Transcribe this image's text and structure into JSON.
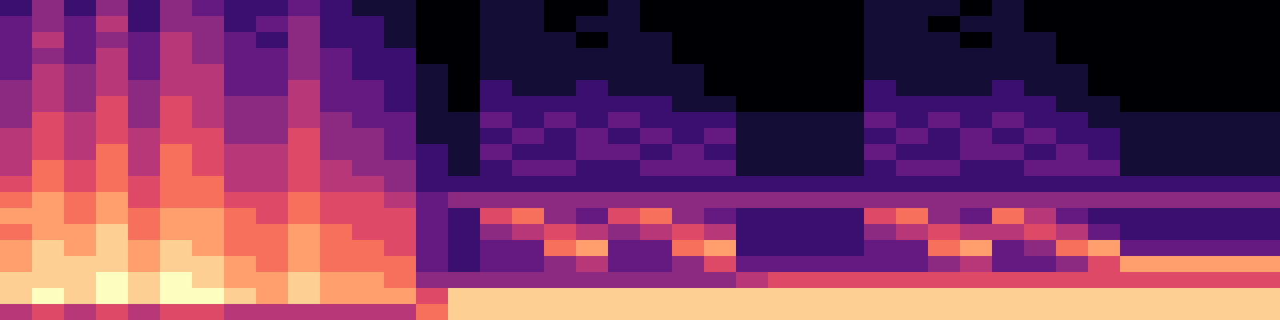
{
  "chart_data": {
    "type": "heatmap",
    "tick_labels": false,
    "color": "magma",
    "zlim": [
      0,
      10
    ],
    "cells": [
      [
        2,
        4,
        2,
        4,
        2,
        4,
        3,
        2,
        2,
        3,
        2,
        1,
        1,
        0,
        0,
        1,
        1,
        0,
        0,
        1,
        0,
        0,
        0,
        0,
        0,
        0,
        0,
        1,
        1,
        1,
        0,
        1,
        0,
        0,
        0,
        0,
        0,
        0,
        0,
        0
      ],
      [
        3,
        4,
        3,
        5,
        2,
        4,
        4,
        2,
        3,
        4,
        2,
        2,
        1,
        0,
        0,
        1,
        1,
        0,
        1,
        1,
        0,
        0,
        0,
        0,
        0,
        0,
        0,
        1,
        1,
        0,
        1,
        1,
        0,
        0,
        0,
        0,
        0,
        0,
        0,
        0
      ],
      [
        3,
        5,
        3,
        4,
        3,
        5,
        4,
        3,
        2,
        4,
        2,
        2,
        1,
        0,
        0,
        1,
        1,
        1,
        0,
        1,
        1,
        0,
        0,
        0,
        0,
        0,
        0,
        1,
        1,
        1,
        0,
        1,
        1,
        0,
        0,
        0,
        0,
        0,
        0,
        0
      ],
      [
        3,
        4,
        3,
        5,
        3,
        5,
        4,
        3,
        3,
        4,
        3,
        2,
        2,
        0,
        0,
        1,
        1,
        1,
        1,
        1,
        1,
        0,
        0,
        0,
        0,
        0,
        0,
        1,
        1,
        1,
        1,
        1,
        1,
        0,
        0,
        0,
        0,
        0,
        0,
        0
      ],
      [
        3,
        5,
        4,
        5,
        3,
        5,
        5,
        3,
        3,
        4,
        3,
        2,
        2,
        1,
        0,
        1,
        1,
        1,
        1,
        1,
        1,
        1,
        0,
        0,
        0,
        0,
        0,
        1,
        1,
        1,
        1,
        1,
        1,
        1,
        0,
        0,
        0,
        0,
        0,
        0
      ],
      [
        4,
        5,
        4,
        5,
        4,
        5,
        5,
        3,
        3,
        5,
        3,
        3,
        2,
        1,
        0,
        2,
        1,
        1,
        2,
        1,
        1,
        1,
        0,
        0,
        0,
        0,
        0,
        2,
        1,
        1,
        1,
        2,
        1,
        1,
        0,
        0,
        0,
        0,
        0,
        0
      ],
      [
        4,
        5,
        4,
        6,
        4,
        6,
        5,
        4,
        4,
        5,
        3,
        3,
        2,
        1,
        0,
        2,
        2,
        2,
        2,
        2,
        2,
        1,
        1,
        0,
        0,
        0,
        0,
        2,
        2,
        2,
        2,
        2,
        2,
        1,
        1,
        0,
        0,
        0,
        0,
        0
      ],
      [
        4,
        6,
        5,
        6,
        4,
        6,
        5,
        4,
        4,
        5,
        4,
        3,
        3,
        1,
        1,
        3,
        2,
        3,
        2,
        3,
        2,
        2,
        2,
        1,
        1,
        1,
        1,
        3,
        2,
        3,
        2,
        3,
        2,
        2,
        1,
        1,
        1,
        1,
        1,
        1
      ],
      [
        5,
        6,
        5,
        6,
        5,
        6,
        6,
        4,
        4,
        6,
        4,
        4,
        3,
        1,
        1,
        2,
        3,
        2,
        3,
        2,
        3,
        2,
        3,
        1,
        1,
        1,
        1,
        2,
        3,
        2,
        3,
        2,
        3,
        2,
        2,
        1,
        1,
        1,
        1,
        1
      ],
      [
        5,
        6,
        5,
        7,
        5,
        7,
        6,
        5,
        5,
        6,
        4,
        4,
        3,
        2,
        1,
        3,
        2,
        2,
        3,
        3,
        2,
        3,
        2,
        1,
        1,
        1,
        1,
        3,
        2,
        2,
        3,
        3,
        2,
        3,
        2,
        1,
        1,
        1,
        1,
        1
      ],
      [
        5,
        7,
        6,
        7,
        5,
        7,
        6,
        5,
        5,
        6,
        5,
        4,
        4,
        2,
        1,
        2,
        3,
        3,
        2,
        2,
        3,
        3,
        3,
        1,
        1,
        1,
        1,
        2,
        3,
        3,
        2,
        2,
        3,
        3,
        3,
        1,
        1,
        1,
        1,
        1
      ],
      [
        6,
        7,
        6,
        7,
        6,
        7,
        7,
        5,
        5,
        6,
        5,
        5,
        4,
        2,
        2,
        2,
        2,
        2,
        2,
        2,
        2,
        2,
        2,
        2,
        2,
        2,
        2,
        2,
        2,
        2,
        2,
        2,
        2,
        2,
        2,
        2,
        2,
        2,
        2,
        2
      ],
      [
        7,
        8,
        7,
        8,
        6,
        7,
        7,
        6,
        6,
        7,
        6,
        6,
        5,
        3,
        4,
        4,
        4,
        4,
        4,
        4,
        4,
        4,
        4,
        4,
        4,
        4,
        4,
        4,
        4,
        4,
        4,
        4,
        4,
        4,
        4,
        4,
        4,
        4,
        4,
        4
      ],
      [
        8,
        8,
        7,
        8,
        7,
        8,
        8,
        7,
        6,
        7,
        6,
        6,
        6,
        3,
        2,
        6,
        7,
        4,
        3,
        6,
        7,
        4,
        3,
        2,
        2,
        2,
        2,
        6,
        7,
        4,
        3,
        7,
        5,
        3,
        2,
        2,
        2,
        2,
        2,
        2
      ],
      [
        7,
        8,
        8,
        9,
        7,
        8,
        8,
        7,
        7,
        8,
        7,
        6,
        6,
        3,
        2,
        4,
        5,
        6,
        5,
        4,
        5,
        6,
        5,
        2,
        2,
        2,
        2,
        4,
        5,
        6,
        5,
        5,
        6,
        5,
        3,
        2,
        2,
        2,
        2,
        2
      ],
      [
        8,
        9,
        8,
        9,
        8,
        9,
        8,
        7,
        7,
        8,
        7,
        7,
        6,
        3,
        2,
        3,
        3,
        7,
        8,
        3,
        3,
        7,
        8,
        2,
        2,
        2,
        2,
        3,
        3,
        7,
        8,
        3,
        4,
        7,
        8,
        3,
        3,
        3,
        3,
        3
      ],
      [
        8,
        9,
        9,
        9,
        8,
        9,
        9,
        8,
        7,
        8,
        7,
        7,
        7,
        3,
        2,
        3,
        3,
        4,
        5,
        3,
        3,
        4,
        6,
        3,
        3,
        3,
        3,
        3,
        3,
        4,
        5,
        3,
        3,
        4,
        6,
        8,
        8,
        8,
        8,
        8
      ],
      [
        9,
        9,
        9,
        10,
        9,
        10,
        9,
        8,
        8,
        9,
        8,
        8,
        7,
        4,
        4,
        4,
        4,
        4,
        4,
        4,
        4,
        4,
        4,
        5,
        6,
        6,
        6,
        6,
        6,
        6,
        6,
        6,
        6,
        6,
        6,
        6,
        6,
        6,
        6,
        6
      ],
      [
        9,
        10,
        9,
        10,
        9,
        10,
        10,
        9,
        8,
        9,
        8,
        8,
        8,
        6,
        9,
        9,
        9,
        9,
        9,
        9,
        9,
        9,
        9,
        9,
        9,
        9,
        9,
        9,
        9,
        9,
        9,
        9,
        9,
        9,
        9,
        9,
        9,
        9,
        9,
        9
      ],
      [
        5,
        6,
        5,
        6,
        5,
        6,
        6,
        5,
        5,
        5,
        5,
        5,
        5,
        7,
        9,
        9,
        9,
        9,
        9,
        9,
        9,
        9,
        9,
        9,
        9,
        9,
        9,
        9,
        9,
        9,
        9,
        9,
        9,
        9,
        9,
        9,
        9,
        9,
        9,
        9
      ]
    ]
  }
}
